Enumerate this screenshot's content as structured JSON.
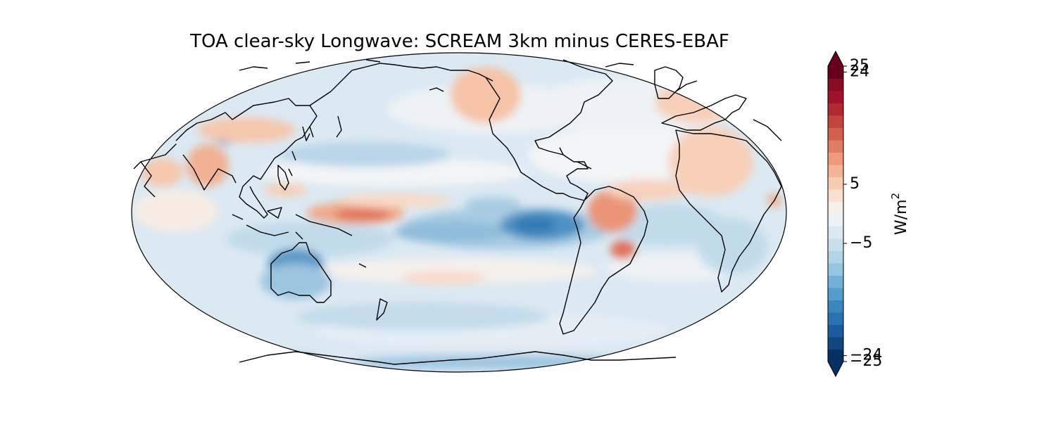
{
  "title": "TOA clear-sky Longwave: SCREAM 3km minus CERES-EBAF",
  "colorbar": {
    "ticks": [
      {
        "value": 25,
        "label": "25"
      },
      {
        "value": 24,
        "label": "24"
      },
      {
        "value": 5,
        "label": "5"
      },
      {
        "value": -5,
        "label": "−5"
      },
      {
        "value": -24,
        "label": "−24"
      },
      {
        "value": -25,
        "label": "−25"
      }
    ],
    "unit_base": "W/m",
    "unit_sup": "2",
    "range": [
      -25,
      25
    ],
    "levels": 24,
    "colors": [
      "#053061",
      "#114781",
      "#1c5c9e",
      "#2a71b2",
      "#3a86bf",
      "#529dcc",
      "#72b1d7",
      "#94c6e0",
      "#b0d5e7",
      "#c8e0ed",
      "#dae9f2",
      "#ebf1f5",
      "#f7efe9",
      "#fae0cf",
      "#f8cbb3",
      "#f5b497",
      "#ee9a7b",
      "#e07e63",
      "#d1614e",
      "#c2443f",
      "#b22832",
      "#a0122a",
      "#870c24",
      "#67001f"
    ],
    "under_color": "#053061",
    "over_color": "#67001f"
  },
  "map": {
    "projection": "Robinson",
    "central_longitude": 180,
    "ocean_base_color": "#dbe9f3",
    "coastline_color": "#000000"
  }
}
